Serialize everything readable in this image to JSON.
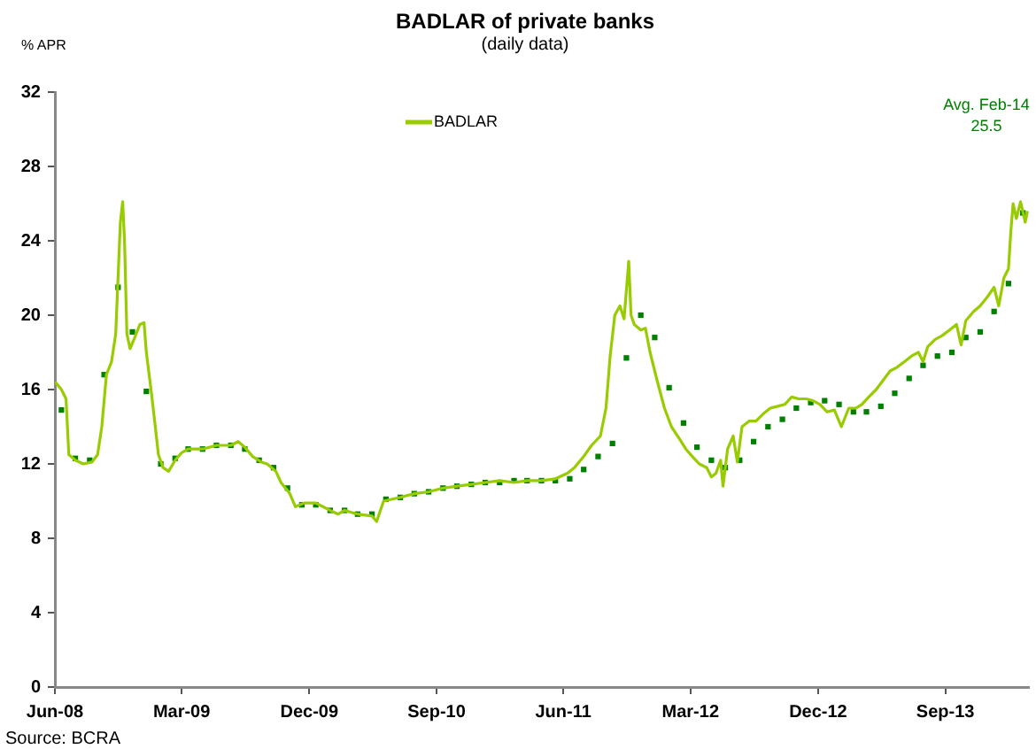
{
  "chart_data": {
    "type": "line",
    "title": "BADLAR of private banks",
    "subtitle": "(daily data)",
    "ylabel": "% APR",
    "xlim": [
      "2008-06-01",
      "2014-02-28"
    ],
    "xticks": [
      {
        "value": "2008-06-01",
        "label": "Jun-08"
      },
      {
        "value": "2009-03-01",
        "label": "Mar-09"
      },
      {
        "value": "2009-12-01",
        "label": "Dec-09"
      },
      {
        "value": "2010-09-01",
        "label": "Sep-10"
      },
      {
        "value": "2011-06-01",
        "label": "Jun-11"
      },
      {
        "value": "2012-03-01",
        "label": "Mar-12"
      },
      {
        "value": "2012-12-01",
        "label": "Dec-12"
      },
      {
        "value": "2013-09-01",
        "label": "Sep-13"
      }
    ],
    "ylim": [
      0,
      32
    ],
    "yticks": [
      0,
      4,
      8,
      12,
      16,
      20,
      24,
      28,
      32
    ],
    "grid": false,
    "legend": "top",
    "series": [
      {
        "name": "BADLAR",
        "color": "#99cc00",
        "marker": "none",
        "x": [
          "2008-06-02",
          "2008-06-15",
          "2008-06-25",
          "2008-07-01",
          "2008-07-15",
          "2008-08-01",
          "2008-08-20",
          "2008-09-01",
          "2008-09-10",
          "2008-09-20",
          "2008-10-01",
          "2008-10-10",
          "2008-10-20",
          "2008-10-25",
          "2008-10-29",
          "2008-11-03",
          "2008-11-10",
          "2008-11-20",
          "2008-12-01",
          "2008-12-10",
          "2008-12-15",
          "2008-12-25",
          "2009-01-01",
          "2009-01-10",
          "2009-01-20",
          "2009-02-01",
          "2009-02-15",
          "2009-03-01",
          "2009-03-15",
          "2009-04-15",
          "2009-05-15",
          "2009-06-15",
          "2009-07-01",
          "2009-07-15",
          "2009-08-01",
          "2009-08-20",
          "2009-09-01",
          "2009-09-20",
          "2009-10-01",
          "2009-10-20",
          "2009-11-01",
          "2009-11-20",
          "2009-12-15",
          "2010-01-15",
          "2010-02-01",
          "2010-02-15",
          "2010-03-15",
          "2010-04-15",
          "2010-04-25",
          "2010-05-10",
          "2010-06-15",
          "2010-07-15",
          "2010-08-15",
          "2010-09-15",
          "2010-10-15",
          "2010-11-15",
          "2010-12-15",
          "2011-01-15",
          "2011-02-15",
          "2011-03-15",
          "2011-04-15",
          "2011-05-15",
          "2011-06-10",
          "2011-06-25",
          "2011-07-15",
          "2011-08-01",
          "2011-08-20",
          "2011-09-01",
          "2011-09-10",
          "2011-09-20",
          "2011-10-01",
          "2011-10-10",
          "2011-10-20",
          "2011-10-25",
          "2011-11-01",
          "2011-11-15",
          "2011-11-25",
          "2011-12-05",
          "2011-12-20",
          "2012-01-05",
          "2012-01-20",
          "2012-02-05",
          "2012-02-20",
          "2012-03-05",
          "2012-03-20",
          "2012-04-05",
          "2012-04-15",
          "2012-04-25",
          "2012-05-05",
          "2012-05-10",
          "2012-05-20",
          "2012-06-01",
          "2012-06-10",
          "2012-06-20",
          "2012-07-05",
          "2012-07-20",
          "2012-08-05",
          "2012-08-20",
          "2012-09-05",
          "2012-09-20",
          "2012-10-05",
          "2012-10-20",
          "2012-11-05",
          "2012-11-20",
          "2012-12-05",
          "2012-12-20",
          "2013-01-05",
          "2013-01-20",
          "2013-02-05",
          "2013-02-20",
          "2013-03-05",
          "2013-03-20",
          "2013-04-05",
          "2013-04-20",
          "2013-05-05",
          "2013-05-20",
          "2013-06-05",
          "2013-06-20",
          "2013-07-05",
          "2013-07-15",
          "2013-07-25",
          "2013-08-10",
          "2013-08-25",
          "2013-09-10",
          "2013-09-25",
          "2013-10-05",
          "2013-10-15",
          "2013-11-01",
          "2013-11-15",
          "2013-12-01",
          "2013-12-15",
          "2013-12-25",
          "2014-01-05",
          "2014-01-15",
          "2014-01-20",
          "2014-01-25",
          "2014-02-01",
          "2014-02-10",
          "2014-02-20",
          "2014-02-25"
        ],
        "values": [
          16.4,
          16.0,
          15.5,
          12.5,
          12.2,
          12.0,
          12.1,
          12.5,
          14,
          16.8,
          17.5,
          19,
          25,
          26.1,
          24,
          19,
          18.2,
          18.8,
          19.5,
          19.6,
          18,
          16,
          14.5,
          12.5,
          11.8,
          11.6,
          12.2,
          12.6,
          12.8,
          12.8,
          13.0,
          13.0,
          13.2,
          12.9,
          12.4,
          12.1,
          12.0,
          11.6,
          11.0,
          10.4,
          9.7,
          9.9,
          9.9,
          9.5,
          9.3,
          9.5,
          9.3,
          9.2,
          8.9,
          10.0,
          10.2,
          10.4,
          10.5,
          10.7,
          10.8,
          10.9,
          11.0,
          11.1,
          11.0,
          11.1,
          11.1,
          11.2,
          11.5,
          11.8,
          12.4,
          13.0,
          13.5,
          15,
          17.8,
          20,
          20.5,
          19.8,
          22.9,
          20,
          19.5,
          19.2,
          19.3,
          18,
          16.5,
          15,
          14.0,
          13.4,
          12.8,
          12.4,
          12.0,
          11.8,
          11.3,
          11.5,
          12.2,
          10.8,
          12.8,
          13.5,
          12.1,
          14.0,
          14.3,
          14.3,
          14.7,
          15.0,
          15.1,
          15.2,
          15.6,
          15.5,
          15.5,
          15.4,
          15.2,
          14.8,
          14.9,
          14.0,
          15.0,
          15.0,
          15.2,
          15.6,
          16.0,
          16.5,
          17.0,
          17.2,
          17.5,
          17.8,
          18.0,
          17.5,
          18.3,
          18.7,
          18.9,
          19.2,
          19.5,
          18.4,
          19.7,
          20.2,
          20.5,
          21.0,
          21.5,
          20.5,
          22.0,
          22.5,
          24.5,
          26.0,
          25.2,
          26.1,
          25.0,
          25.6
        ]
      },
      {
        "type": "scatter",
        "color": "#008000",
        "marker": "square",
        "x": [
          "2008-06-15",
          "2008-07-15",
          "2008-08-15",
          "2008-09-15",
          "2008-10-15",
          "2008-11-15",
          "2008-12-15",
          "2009-01-15",
          "2009-02-15",
          "2009-03-15",
          "2009-04-15",
          "2009-05-15",
          "2009-06-15",
          "2009-07-15",
          "2009-08-15",
          "2009-09-15",
          "2009-10-15",
          "2009-11-15",
          "2009-12-15",
          "2010-01-15",
          "2010-02-15",
          "2010-03-15",
          "2010-04-15",
          "2010-05-15",
          "2010-06-15",
          "2010-07-15",
          "2010-08-15",
          "2010-09-15",
          "2010-10-15",
          "2010-11-15",
          "2010-12-15",
          "2011-01-15",
          "2011-02-15",
          "2011-03-15",
          "2011-04-15",
          "2011-05-15",
          "2011-06-15",
          "2011-07-15",
          "2011-08-15",
          "2011-09-15",
          "2011-10-15",
          "2011-11-15",
          "2011-12-15",
          "2012-01-15",
          "2012-02-15",
          "2012-03-15",
          "2012-04-15",
          "2012-05-15",
          "2012-06-15",
          "2012-07-15",
          "2012-08-15",
          "2012-09-15",
          "2012-10-15",
          "2012-11-15",
          "2012-12-15",
          "2013-01-15",
          "2013-02-15",
          "2013-03-15",
          "2013-04-15",
          "2013-05-15",
          "2013-06-15",
          "2013-07-15",
          "2013-08-15",
          "2013-09-15",
          "2013-10-15",
          "2013-11-15",
          "2013-12-15",
          "2014-01-15",
          "2014-02-15"
        ],
        "values": [
          14.9,
          12.3,
          12.2,
          16.8,
          21.5,
          19.1,
          15.9,
          12.0,
          12.3,
          12.8,
          12.8,
          13.0,
          13.0,
          12.8,
          12.2,
          11.8,
          10.7,
          9.8,
          9.8,
          9.5,
          9.5,
          9.3,
          9.3,
          10.1,
          10.2,
          10.4,
          10.5,
          10.7,
          10.8,
          10.9,
          11.0,
          11.0,
          11.1,
          11.1,
          11.1,
          11.1,
          11.2,
          11.7,
          12.4,
          13.1,
          17.7,
          20.0,
          18.8,
          16.1,
          14.2,
          12.9,
          12.2,
          11.8,
          12.2,
          13.2,
          14.0,
          14.4,
          15.0,
          15.3,
          15.4,
          15.2,
          14.8,
          14.8,
          15.1,
          15.8,
          16.6,
          17.3,
          17.8,
          18.0,
          18.8,
          19.1,
          20.2,
          21.7,
          25.5
        ]
      }
    ],
    "annotations": [
      "Avg. Feb-14\n25.5",
      "Source: BCRA"
    ]
  }
}
